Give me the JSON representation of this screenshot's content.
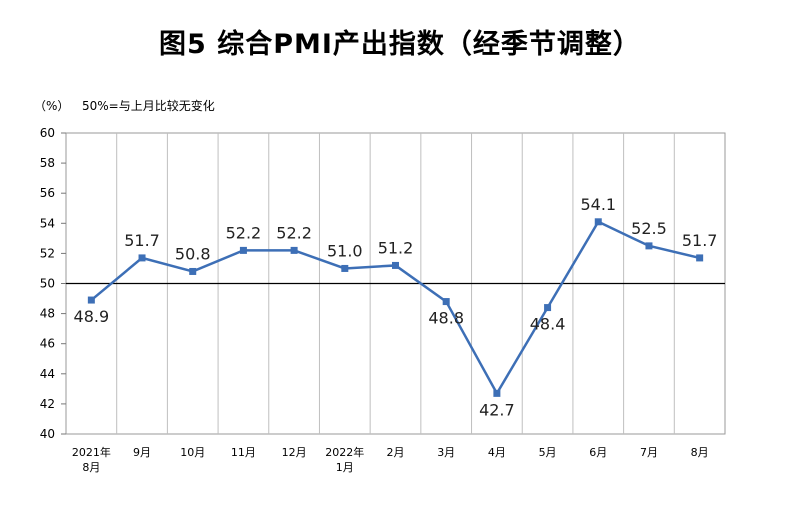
{
  "chart_data": {
    "type": "line",
    "title": "图5 综合PMI产出指数（经季节调整）",
    "unit_label": "（%）",
    "note": "50%=与上月比较无变化",
    "categories": [
      [
        "2021年",
        "8月"
      ],
      [
        "9月"
      ],
      [
        "10月"
      ],
      [
        "11月"
      ],
      [
        "12月"
      ],
      [
        "2022年",
        "1月"
      ],
      [
        "2月"
      ],
      [
        "3月"
      ],
      [
        "4月"
      ],
      [
        "5月"
      ],
      [
        "6月"
      ],
      [
        "7月"
      ],
      [
        "8月"
      ]
    ],
    "series": [
      {
        "values": [
          48.9,
          51.7,
          50.8,
          52.2,
          52.2,
          51.0,
          51.2,
          48.8,
          42.7,
          48.4,
          54.1,
          52.5,
          51.7
        ]
      }
    ],
    "data_labels": [
      "48.9",
      "51.7",
      "50.8",
      "52.2",
      "52.2",
      "51.0",
      "51.2",
      "48.8",
      "42.7",
      "48.4",
      "54.1",
      "52.5",
      "51.7"
    ],
    "ylim": [
      40,
      60
    ],
    "yticks": [
      "40",
      "42",
      "44",
      "46",
      "48",
      "50",
      "52",
      "54",
      "56",
      "58",
      "60"
    ],
    "reference_line": 50,
    "grid": "vertical-category-dividers",
    "colors": {
      "line": "#3d6fb6",
      "marker": "#3d6fb6",
      "reference": "#000000",
      "grid": "#bfbfbf"
    }
  }
}
